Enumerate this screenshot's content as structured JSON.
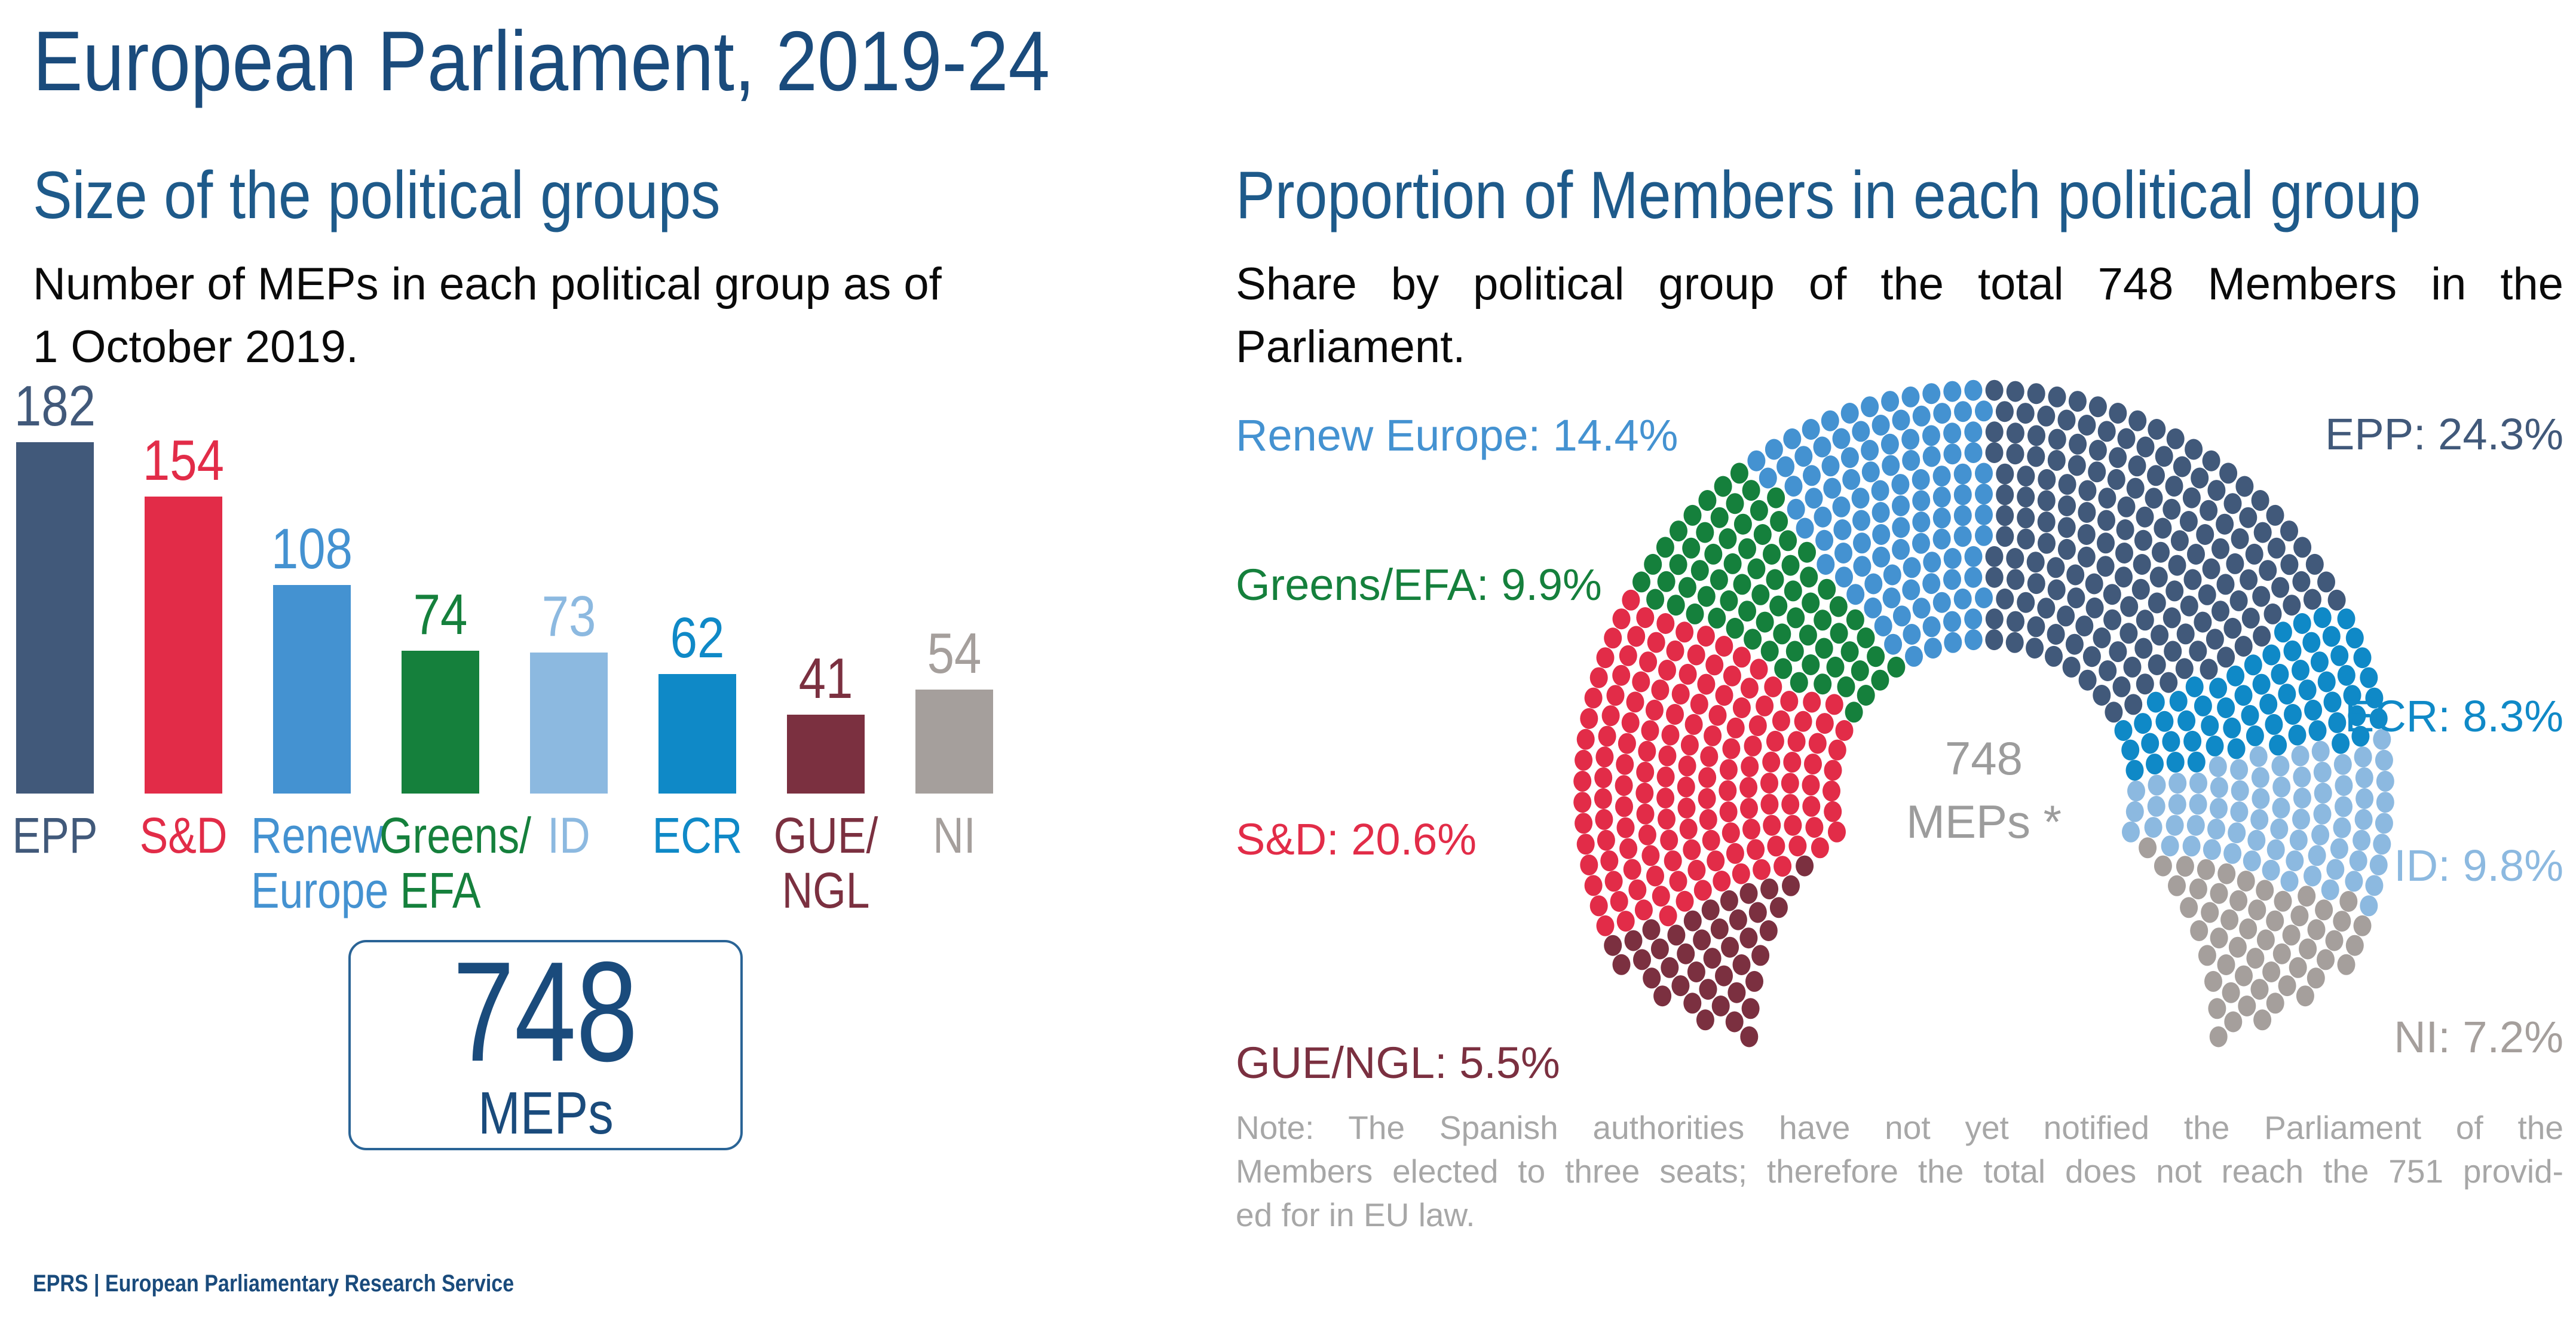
{
  "title": "European Parliament, 2019-24",
  "footer": "EPRS | European Parliamentary Research Service",
  "left_panel": {
    "heading": "Size of the political groups",
    "subtitle_line1": "Number of MEPs in each political group as of",
    "subtitle_line2": "1 October 2019.",
    "total_box": {
      "number": "748",
      "label": "MEPs"
    }
  },
  "right_panel": {
    "heading": "Proportion of Members in each political group",
    "subtitle_line1": "Share by political group of the total 748 Members in the",
    "subtitle_line2": "Parliament.",
    "center_label": {
      "line1": "748",
      "line2": "MEPs *"
    },
    "labels": [
      {
        "text": "Renew Europe: 14.4%",
        "color": "#4492d1"
      },
      {
        "text": "Greens/EFA: 9.9%",
        "color": "#15803c"
      },
      {
        "text": "S&D: 20.6%",
        "color": "#e22c48"
      },
      {
        "text": "GUE/NGL: 5.5%",
        "color": "#7b3040"
      },
      {
        "text": "EPP: 24.3%",
        "color": "#41597a"
      },
      {
        "text": "ECR: 8.3%",
        "color": "#0f89c7"
      },
      {
        "text": "ID: 9.8%",
        "color": "#8cb9e0"
      },
      {
        "text": "NI: 7.2%",
        "color": "#a59f9c"
      }
    ],
    "note_lines": [
      "Note: The Spanish authorities have not yet notified the Parliament of the",
      "Members elected to three seats; therefore the total does not reach the 751 provid-",
      "ed for in EU law."
    ]
  },
  "chart_data": [
    {
      "type": "bar",
      "title": "Size of the political groups",
      "subtitle": "Number of MEPs in each political group as of 1 October 2019.",
      "ylabel": "MEPs",
      "total": 748,
      "categories": [
        "EPP",
        "S&D",
        "Renew Europe",
        "Greens/EFA",
        "ID",
        "ECR",
        "GUE/NGL",
        "NI"
      ],
      "values": [
        182,
        154,
        108,
        74,
        73,
        62,
        41,
        54
      ],
      "colors": [
        "#41597a",
        "#e22c48",
        "#4492d1",
        "#15803c",
        "#8cb9e0",
        "#0f89c7",
        "#7b3040",
        "#a59f9c"
      ],
      "bar_label_lines": [
        [
          "EPP"
        ],
        [
          "S&D"
        ],
        [
          "Renew",
          "Europe"
        ],
        [
          "Greens/",
          "EFA"
        ],
        [
          "ID"
        ],
        [
          "ECR"
        ],
        [
          "GUE/",
          "NGL"
        ],
        [
          "NI"
        ]
      ]
    },
    {
      "type": "parliament-dots",
      "title": "Proportion of Members in each political group",
      "subtitle": "Share by political group of the total 748 Members in the Parliament.",
      "total": 748,
      "center_text": "748 MEPs *",
      "series": [
        {
          "name": "GUE/NGL",
          "seats": 41,
          "percent": 5.5,
          "color": "#7b3040"
        },
        {
          "name": "S&D",
          "seats": 154,
          "percent": 20.6,
          "color": "#e22c48"
        },
        {
          "name": "Greens/EFA",
          "seats": 74,
          "percent": 9.9,
          "color": "#15803c"
        },
        {
          "name": "Renew Europe",
          "seats": 108,
          "percent": 14.4,
          "color": "#4492d1"
        },
        {
          "name": "EPP",
          "seats": 182,
          "percent": 24.3,
          "color": "#41597a"
        },
        {
          "name": "ECR",
          "seats": 62,
          "percent": 8.3,
          "color": "#0f89c7"
        },
        {
          "name": "ID",
          "seats": 73,
          "percent": 9.8,
          "color": "#8cb9e0"
        },
        {
          "name": "NI",
          "seats": 54,
          "percent": 7.2,
          "color": "#a59f9c"
        }
      ]
    }
  ]
}
